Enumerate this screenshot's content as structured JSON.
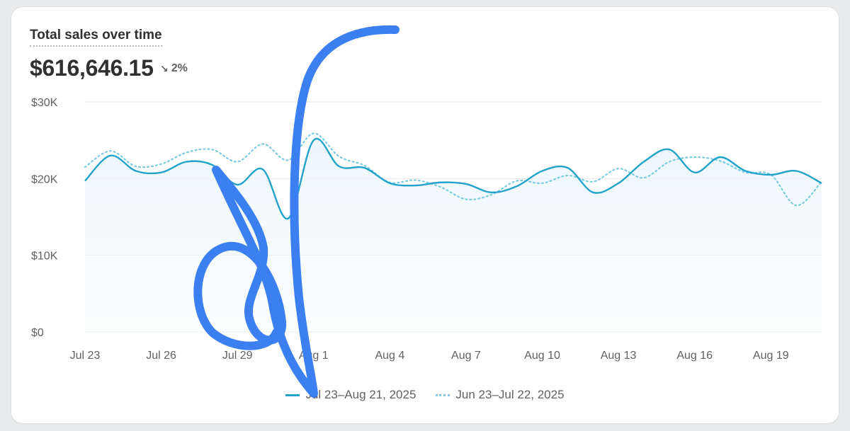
{
  "card": {
    "title": "Total sales over time",
    "total": "$616,646.15",
    "change_icon": "arrow-down-right-icon",
    "change_text": "2%"
  },
  "legend": {
    "current": "Jul 23–Aug 21, 2025",
    "previous": "Jun 23–Jul 22, 2025"
  },
  "colors": {
    "current": "#23a3c9",
    "previous": "#7ccbe0",
    "grid": "#e6e8ea",
    "annotation": "#3b7ff0"
  },
  "chart_data": {
    "type": "line",
    "x_tick_labels": [
      "Jul 23",
      "Jul 26",
      "Jul 29",
      "Aug 1",
      "Aug 4",
      "Aug 7",
      "Aug 10",
      "Aug 13",
      "Aug 16",
      "Aug 19"
    ],
    "x_tick_every": 3,
    "y_ticks": [
      {
        "value": 0,
        "label": "$0"
      },
      {
        "value": 10000,
        "label": "$10K"
      },
      {
        "value": 20000,
        "label": "$20K"
      },
      {
        "value": 30000,
        "label": "$30K"
      }
    ],
    "ylim": [
      0,
      30000
    ],
    "grid": true,
    "legend_position": "bottom",
    "series": [
      {
        "name": "Jul 23–Aug 21, 2025",
        "style": "solid",
        "values": [
          19700,
          23000,
          21000,
          20800,
          22200,
          21800,
          19200,
          21200,
          14800,
          25000,
          21600,
          21400,
          19400,
          19100,
          19500,
          19300,
          18200,
          19000,
          21000,
          21400,
          18200,
          19400,
          22200,
          23800,
          20800,
          22800,
          21000,
          20500,
          21000,
          19400
        ]
      },
      {
        "name": "Jun 23–Jul 22, 2025",
        "style": "dotted",
        "values": [
          21500,
          23600,
          21600,
          21900,
          23400,
          23800,
          22200,
          24500,
          22400,
          25900,
          22900,
          21700,
          19500,
          19800,
          18900,
          17300,
          17900,
          19700,
          19400,
          20400,
          19600,
          21300,
          20100,
          22200,
          22800,
          22300,
          20800,
          20500,
          16500,
          19600
        ]
      }
    ]
  }
}
